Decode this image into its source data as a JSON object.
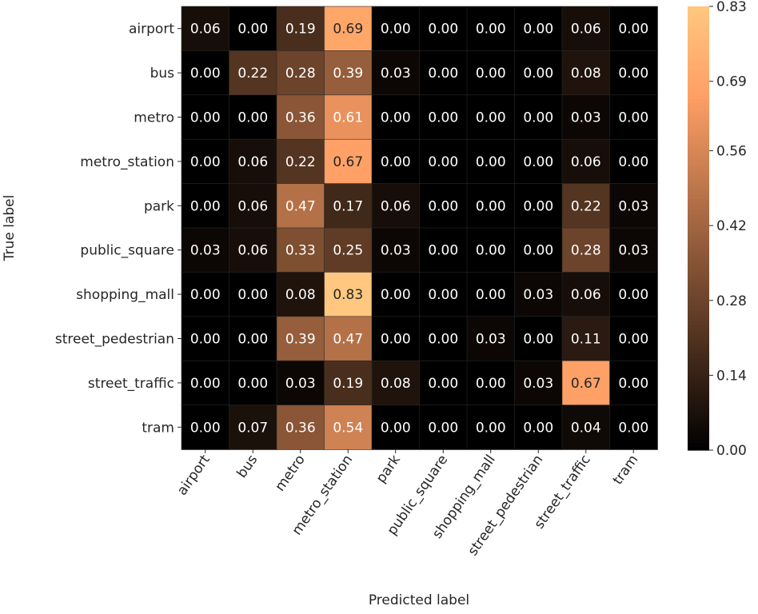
{
  "chart_data": {
    "type": "heatmap",
    "title": "",
    "xlabel": "Predicted label",
    "ylabel": "True label",
    "x_categories": [
      "airport",
      "bus",
      "metro",
      "metro_station",
      "park",
      "public_square",
      "shopping_mall",
      "street_pedestrian",
      "street_traffic",
      "tram"
    ],
    "y_categories": [
      "airport",
      "bus",
      "metro",
      "metro_station",
      "park",
      "public_square",
      "shopping_mall",
      "street_pedestrian",
      "street_traffic",
      "tram"
    ],
    "values": [
      [
        0.06,
        0.0,
        0.19,
        0.69,
        0.0,
        0.0,
        0.0,
        0.0,
        0.06,
        0.0
      ],
      [
        0.0,
        0.22,
        0.28,
        0.39,
        0.03,
        0.0,
        0.0,
        0.0,
        0.08,
        0.0
      ],
      [
        0.0,
        0.0,
        0.36,
        0.61,
        0.0,
        0.0,
        0.0,
        0.0,
        0.03,
        0.0
      ],
      [
        0.0,
        0.06,
        0.22,
        0.67,
        0.0,
        0.0,
        0.0,
        0.0,
        0.06,
        0.0
      ],
      [
        0.0,
        0.06,
        0.47,
        0.17,
        0.06,
        0.0,
        0.0,
        0.0,
        0.22,
        0.03
      ],
      [
        0.03,
        0.06,
        0.33,
        0.25,
        0.03,
        0.0,
        0.0,
        0.0,
        0.28,
        0.03
      ],
      [
        0.0,
        0.0,
        0.08,
        0.83,
        0.0,
        0.0,
        0.0,
        0.03,
        0.06,
        0.0
      ],
      [
        0.0,
        0.0,
        0.39,
        0.47,
        0.0,
        0.0,
        0.03,
        0.0,
        0.11,
        0.0
      ],
      [
        0.0,
        0.0,
        0.03,
        0.19,
        0.08,
        0.0,
        0.0,
        0.03,
        0.67,
        0.0
      ],
      [
        0.0,
        0.07,
        0.36,
        0.54,
        0.0,
        0.0,
        0.0,
        0.0,
        0.04,
        0.0
      ]
    ],
    "colormap": "copper",
    "colorbar": {
      "range": [
        0.0,
        0.83
      ],
      "ticks": [
        "0.00",
        "0.14",
        "0.28",
        "0.42",
        "0.56",
        "0.69",
        "0.83"
      ]
    },
    "annotation_format": "0.00",
    "colors": {
      "dark_text": "#262626",
      "light_text": "#ffffff"
    }
  }
}
